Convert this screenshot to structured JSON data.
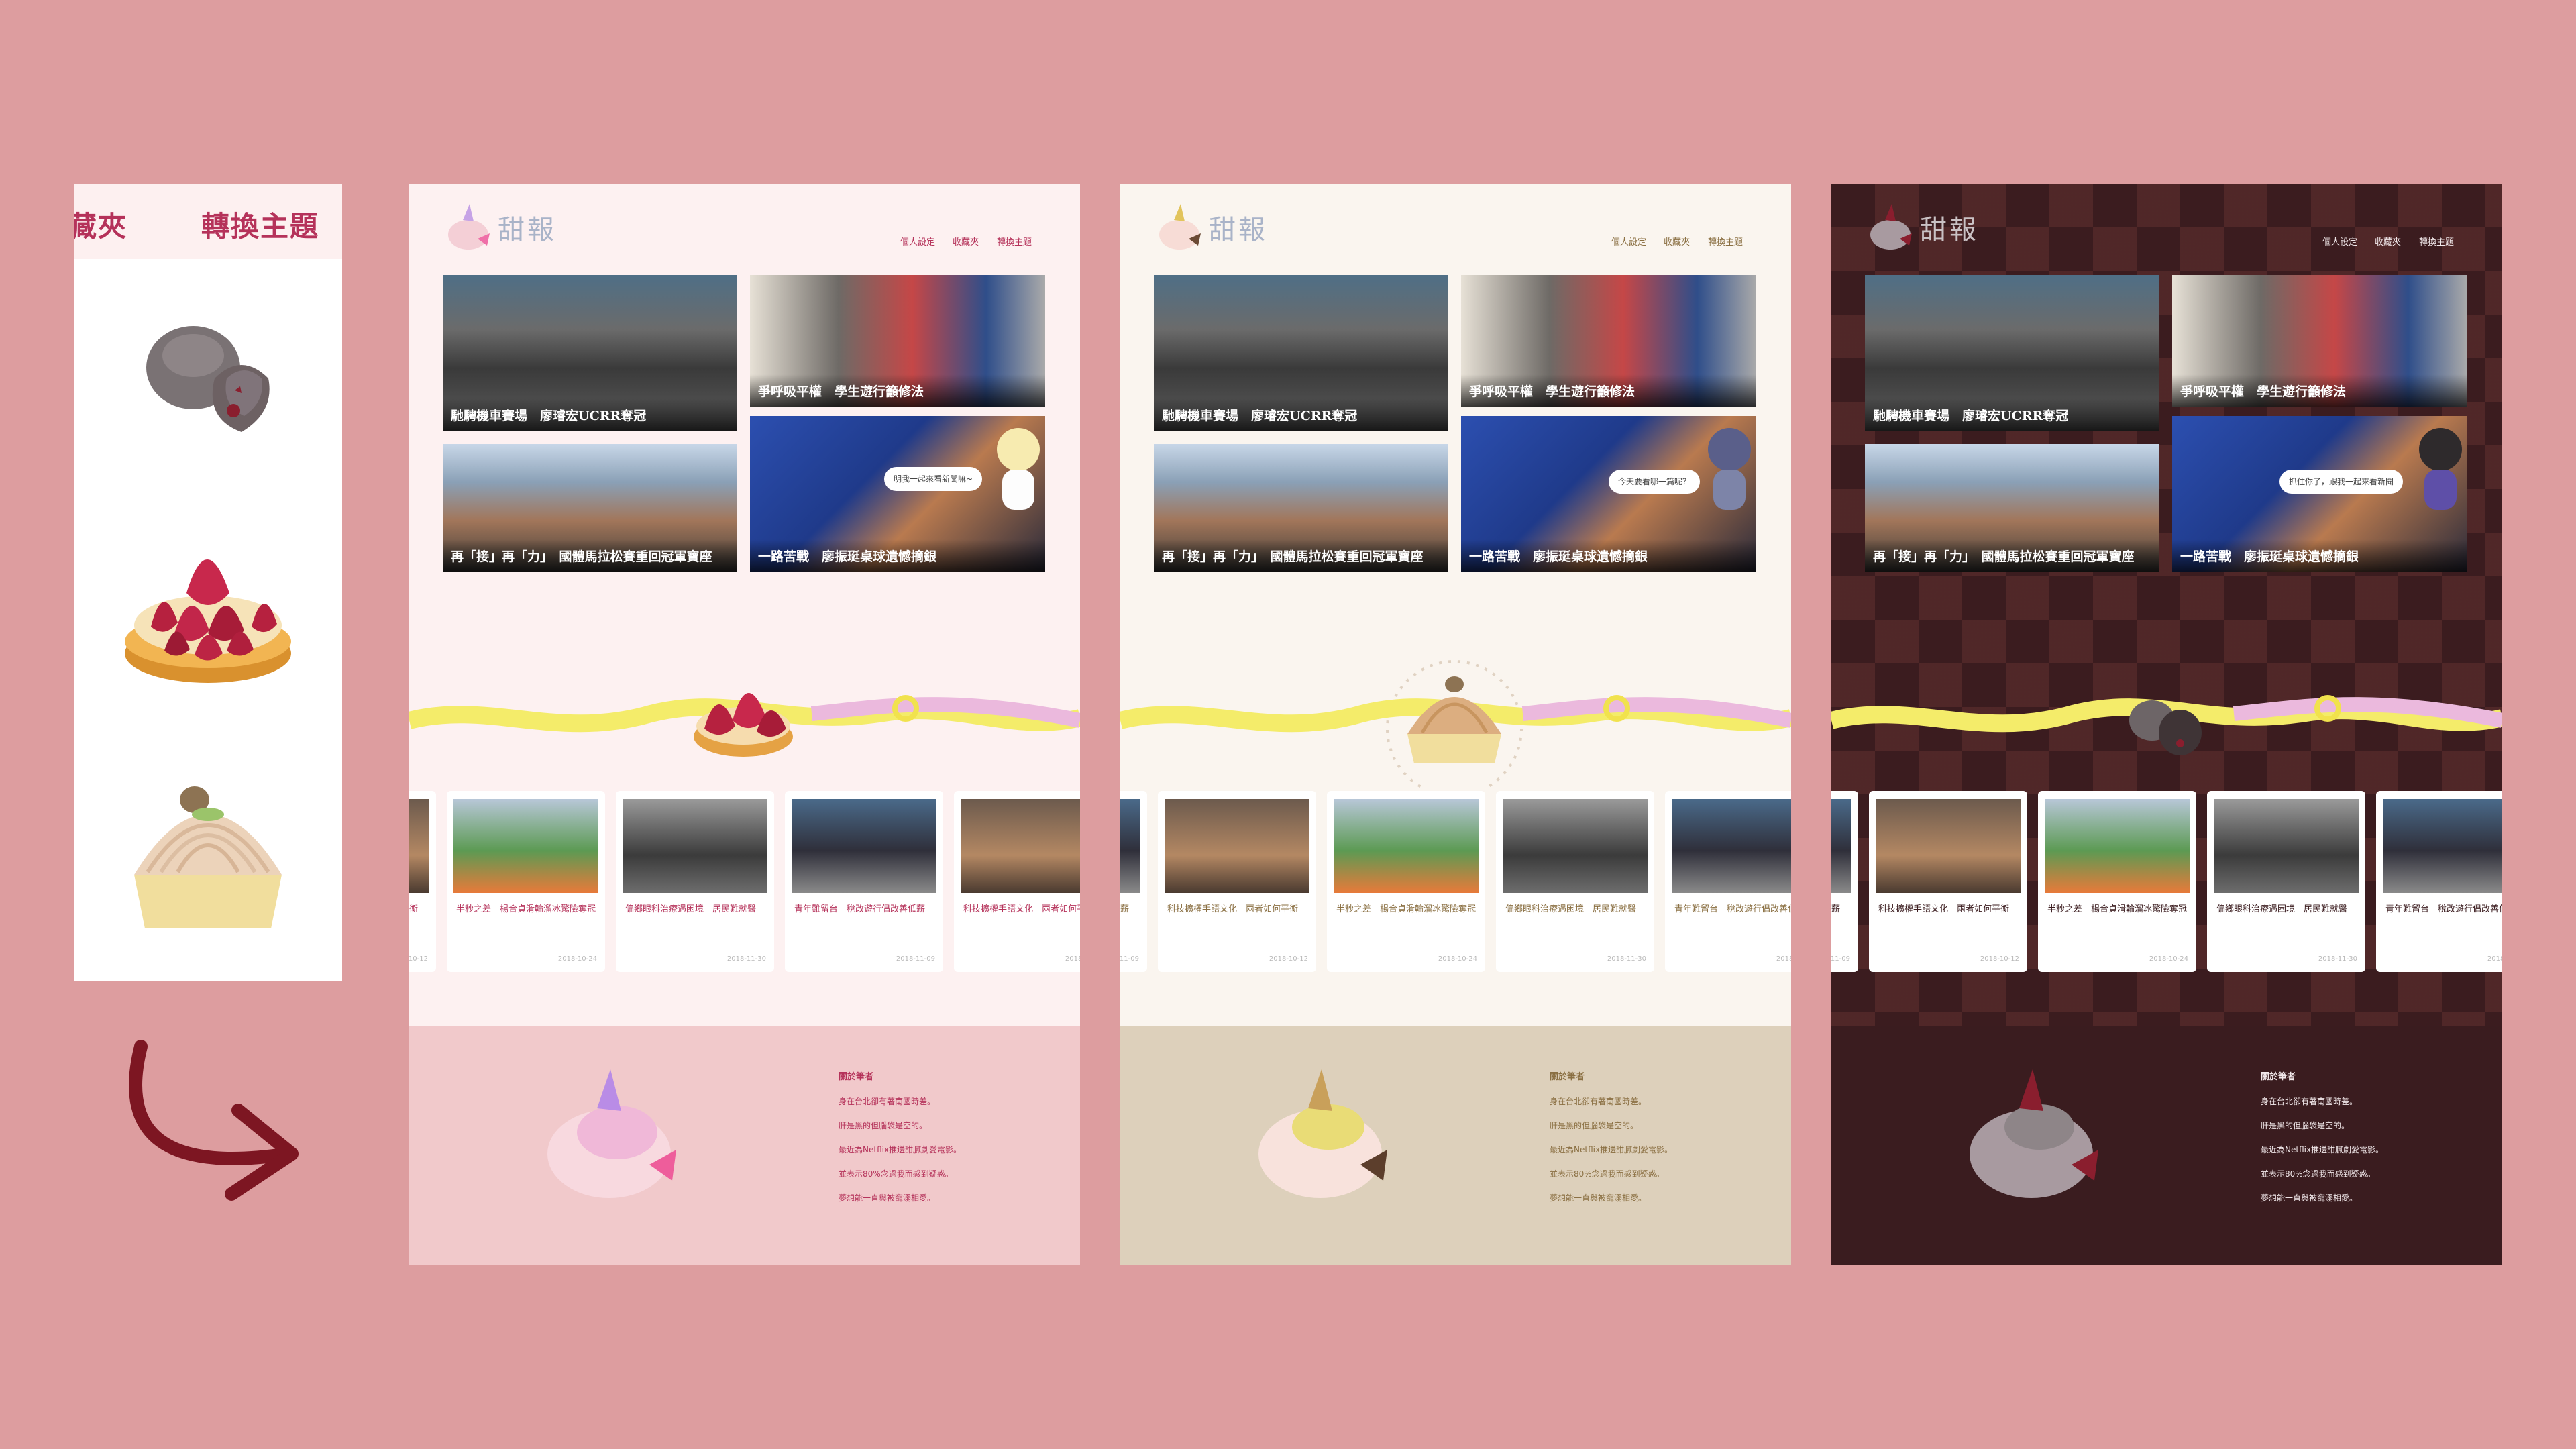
{
  "switcher": {
    "fav_label": "藏夾",
    "theme_label": "轉換主題",
    "options": [
      {
        "name": "chocolate",
        "color": "#6e4a4c"
      },
      {
        "name": "strawberry-tart",
        "color": "#b6213f"
      },
      {
        "name": "mont-blanc",
        "color": "#e9cfa9"
      }
    ]
  },
  "site": {
    "logo_text": "甜報",
    "nav": [
      "個人設定",
      "收藏夾",
      "轉換主題"
    ]
  },
  "news": [
    {
      "title": "馳騁機車賽場　廖璿宏UCRR奪冠"
    },
    {
      "title": "爭呼吸平權　學生遊行籲修法"
    },
    {
      "title": "再「接」再「力」　國體馬拉松賽重回冠軍寶座"
    },
    {
      "title": "一路苦戰　廖振珽桌球遺憾摘銀"
    }
  ],
  "bubbles": {
    "light": "明我一起來看新聞嘛~",
    "cream": "今天要看哪一篇呢？",
    "dark": "抓住你了，跟我一起來看新聞"
  },
  "cards": [
    {
      "title": "科技擴權手語文化　兩者如何平衡",
      "date": "2018-10-12"
    },
    {
      "title": "半秒之差　楊合貞滑輪溜冰驚險奪冠",
      "date": "2018-10-24"
    },
    {
      "title": "偏鄉眼科治療遇困境　居民難就醫",
      "date": "2018-11-30"
    },
    {
      "title": "青年難留台　稅改遊行倡改善低薪",
      "date": "2018-11-09"
    }
  ],
  "footer": {
    "heading": "關於筆者",
    "lines": [
      "身在台北卻有著南國時差。",
      "肝是黑的但腦袋是空的。",
      "最近為Netflix推送甜膩劇愛電影。",
      "並表示80%念過我而感到疑惑。",
      "夢想能一直與被寵溺相愛。"
    ]
  },
  "themes": {
    "light": {
      "bg": "#fdf1f1",
      "footer": "#f1c9cb",
      "accent": "#b5325a",
      "logo": "#a9b3c8"
    },
    "cream": {
      "bg": "#faf5ef",
      "footer": "#ddd0bb",
      "accent": "#8a6f42",
      "logo": "#a9b3c8"
    },
    "dark": {
      "bg": "#3b1c1f",
      "footer": "#3a1c1f",
      "accent": "#ffffff",
      "logo": "#c9c1c4"
    }
  }
}
